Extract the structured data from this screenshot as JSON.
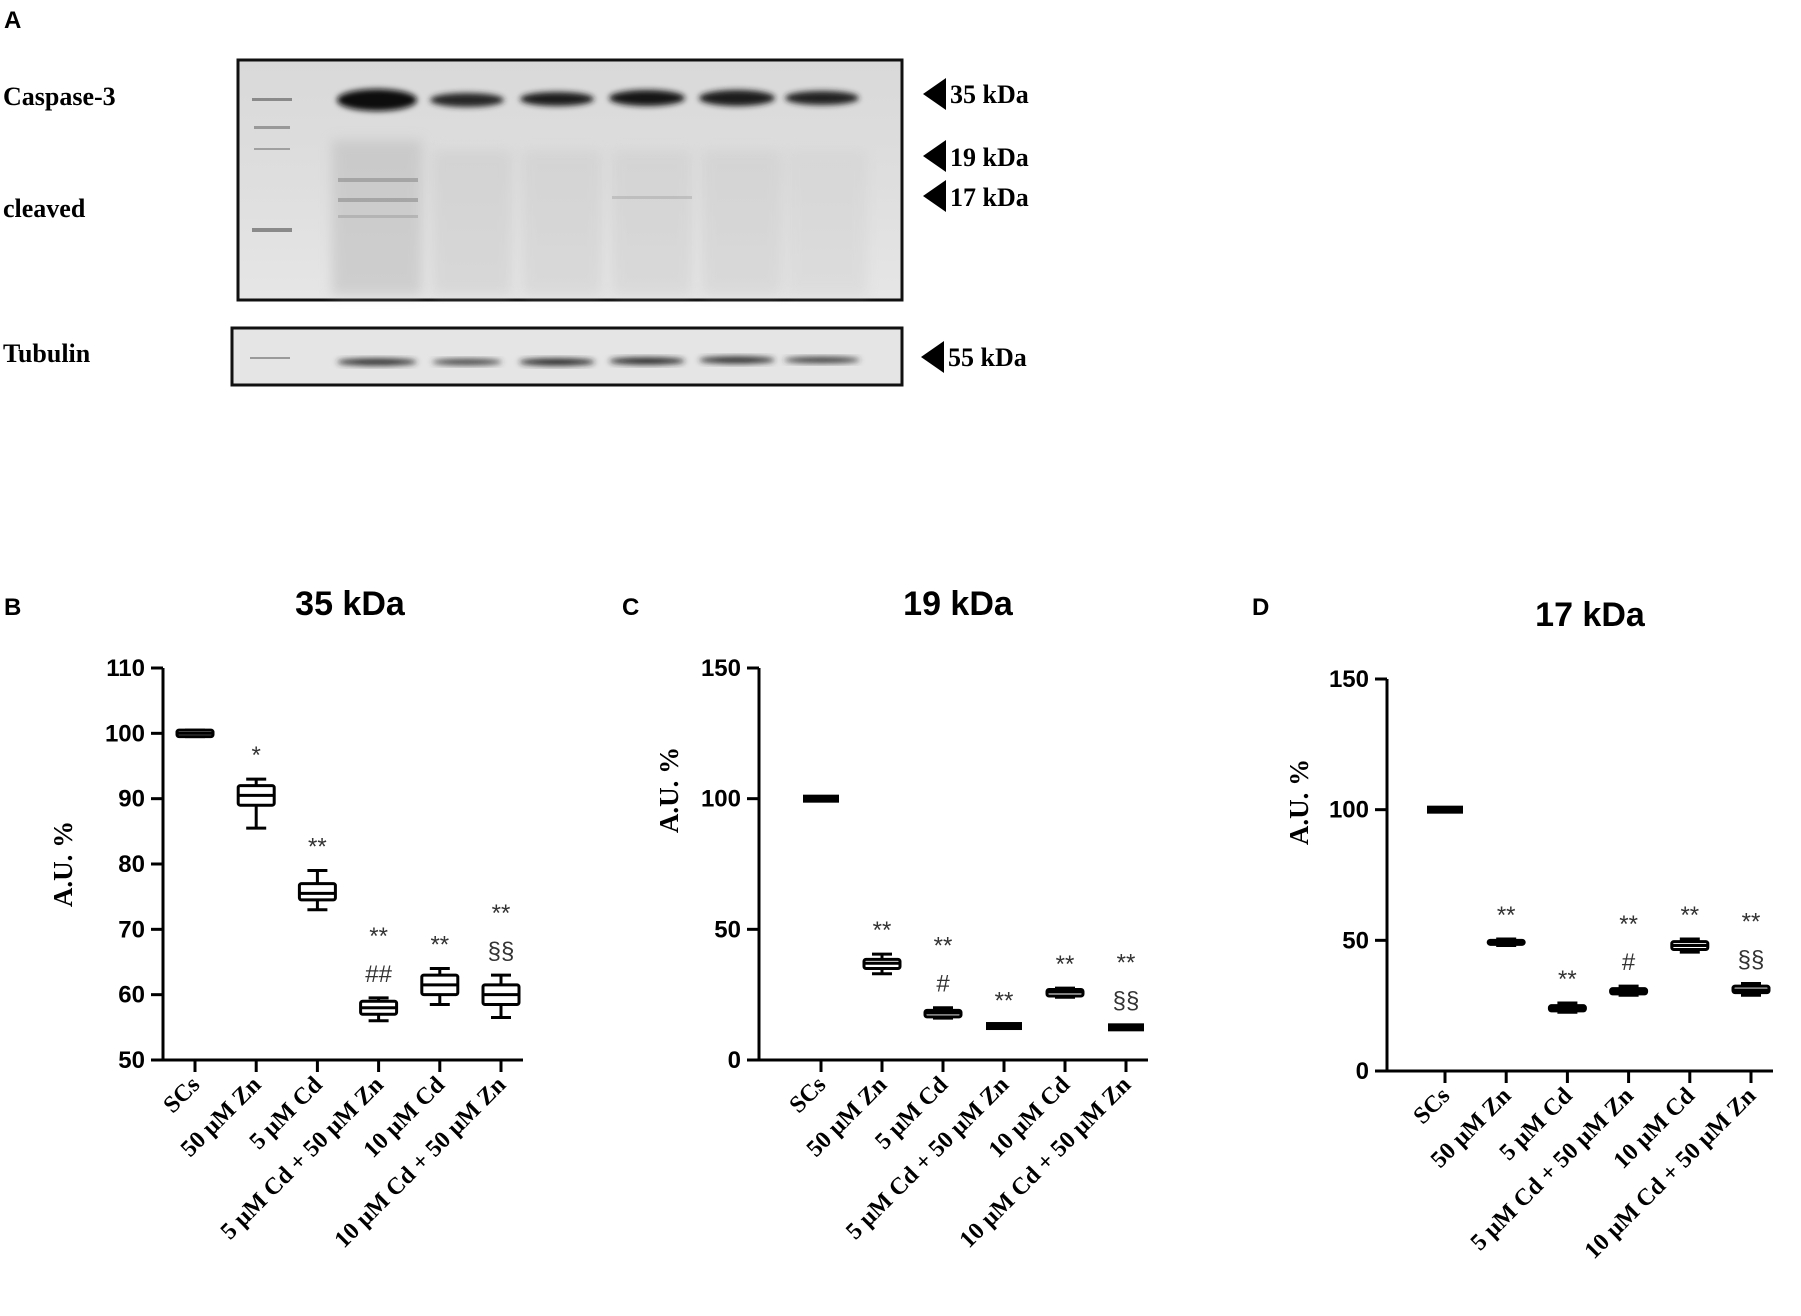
{
  "blot": {
    "panel_letter": "A",
    "labels": {
      "caspase": "Caspase-3",
      "cleaved": "cleaved",
      "tubulin": "Tubulin"
    },
    "markers": [
      "35 kDa",
      "19 kDa",
      "17 kDa",
      "55 kDa"
    ]
  },
  "chart_data": [
    {
      "type": "box",
      "panel_letter": "B",
      "title": "35 kDa",
      "ylabel": "A.U. %",
      "xlabel": "",
      "ylim": [
        50,
        110
      ],
      "yticks": [
        50,
        60,
        70,
        80,
        90,
        100,
        110
      ],
      "categories": [
        "SCs",
        "50 µM Zn",
        "5 µM Cd",
        "5 µM Cd + 50 µM Zn",
        "10 µM Cd",
        "10 µM Cd + 50 µM Zn"
      ],
      "boxes": [
        {
          "min": 99.5,
          "q1": 99.5,
          "median": 100,
          "q3": 100.5,
          "max": 100.5
        },
        {
          "min": 85.5,
          "q1": 89,
          "median": 90.5,
          "q3": 92,
          "max": 93
        },
        {
          "min": 73,
          "q1": 74.5,
          "median": 75.5,
          "q3": 77,
          "max": 79
        },
        {
          "min": 56,
          "q1": 57,
          "median": 58,
          "q3": 59,
          "max": 59.5
        },
        {
          "min": 58.5,
          "q1": 60,
          "median": 61.5,
          "q3": 63,
          "max": 64
        },
        {
          "min": 56.5,
          "q1": 58.5,
          "median": 60,
          "q3": 61.5,
          "max": 63
        }
      ],
      "annotations": [
        [],
        [
          "*"
        ],
        [
          "**"
        ],
        [
          "**",
          "##"
        ],
        [
          "**"
        ],
        [
          "**",
          "§§"
        ]
      ]
    },
    {
      "type": "box",
      "panel_letter": "C",
      "title": "19 kDa",
      "ylabel": "A.U. %",
      "xlabel": "",
      "ylim": [
        0,
        150
      ],
      "yticks": [
        0,
        50,
        100,
        150
      ],
      "categories": [
        "SCs",
        "50 µM Zn",
        "5 µM Cd",
        "5 µM Cd + 50 µM Zn",
        "10 µM Cd",
        "10 µM Cd + 50 µM Zn"
      ],
      "boxes": [
        {
          "min": 99,
          "q1": 99,
          "median": 100,
          "q3": 101,
          "max": 101
        },
        {
          "min": 33,
          "q1": 35,
          "median": 37,
          "q3": 38.5,
          "max": 40.5
        },
        {
          "min": 16,
          "q1": 16.5,
          "median": 18,
          "q3": 19,
          "max": 20
        },
        {
          "min": 12.5,
          "q1": 12.5,
          "median": 13,
          "q3": 13.5,
          "max": 13.5
        },
        {
          "min": 24,
          "q1": 24.5,
          "median": 26,
          "q3": 27,
          "max": 27.5
        },
        {
          "min": 11.5,
          "q1": 12,
          "median": 12.5,
          "q3": 13,
          "max": 13.5
        }
      ],
      "annotations": [
        [],
        [
          "**"
        ],
        [
          "**",
          "#"
        ],
        [
          "**"
        ],
        [
          "**"
        ],
        [
          "**",
          "§§"
        ]
      ]
    },
    {
      "type": "box",
      "panel_letter": "D",
      "title": "17 kDa",
      "ylabel": "A.U. %",
      "xlabel": "",
      "ylim": [
        0,
        150
      ],
      "yticks": [
        0,
        50,
        100,
        150
      ],
      "categories": [
        "SCs",
        "50 µM Zn",
        "5 µM Cd",
        "5 µM Cd + 50 µM Zn",
        "10 µM Cd",
        "10 µM Cd + 50 µM Zn"
      ],
      "boxes": [
        {
          "min": 99,
          "q1": 99,
          "median": 100,
          "q3": 101,
          "max": 101
        },
        {
          "min": 48,
          "q1": 48.5,
          "median": 49,
          "q3": 50,
          "max": 50.5
        },
        {
          "min": 22.5,
          "q1": 23,
          "median": 24,
          "q3": 25,
          "max": 26
        },
        {
          "min": 29,
          "q1": 29.5,
          "median": 30.5,
          "q3": 31.5,
          "max": 32.5
        },
        {
          "min": 45.5,
          "q1": 46.5,
          "median": 48,
          "q3": 49.5,
          "max": 50.5
        },
        {
          "min": 29,
          "q1": 30,
          "median": 31,
          "q3": 32.5,
          "max": 33.5
        }
      ],
      "annotations": [
        [],
        [
          "**"
        ],
        [
          "**"
        ],
        [
          "**",
          "#"
        ],
        [
          "**"
        ],
        [
          "**",
          "§§"
        ]
      ]
    }
  ]
}
